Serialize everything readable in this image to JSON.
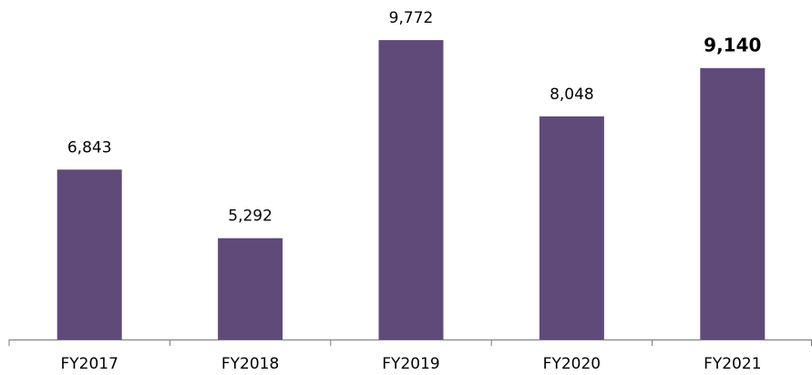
{
  "chart_data": {
    "type": "bar",
    "categories": [
      "FY2017",
      "FY2018",
      "FY2019",
      "FY2020",
      "FY2021"
    ],
    "values": [
      6843,
      5292,
      9772,
      8048,
      9140
    ],
    "value_labels": [
      "6,843",
      "5,292",
      "9,772",
      "8,048",
      "9,140"
    ],
    "color": "#5f4a7a",
    "ylim": [
      3000,
      10000
    ]
  }
}
